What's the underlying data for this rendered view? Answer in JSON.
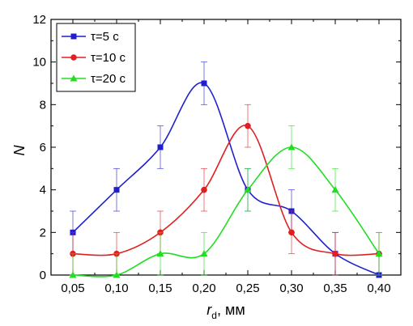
{
  "chart_data": {
    "type": "line",
    "xlabel_main": "r",
    "xlabel_sub": "d",
    "xlabel_unit": ", мм",
    "ylabel": "N",
    "x": [
      0.05,
      0.1,
      0.15,
      0.2,
      0.25,
      0.3,
      0.35,
      0.4
    ],
    "x_tick_labels": [
      "0,05",
      "0,10",
      "0,15",
      "0,20",
      "0,25",
      "0,30",
      "0,35",
      "0,40"
    ],
    "y_ticks": [
      0,
      2,
      4,
      6,
      8,
      10,
      12
    ],
    "xlim": [
      0.025,
      0.425
    ],
    "ylim": [
      0,
      12
    ],
    "grid": false,
    "legend_position": "top-left",
    "series": [
      {
        "name": "τ=5 с",
        "color": "#1f1fd0",
        "marker": "square",
        "values": [
          2,
          4,
          6,
          9,
          4,
          3,
          1,
          0
        ],
        "error": [
          1,
          1,
          1,
          1,
          1,
          1,
          1,
          1
        ]
      },
      {
        "name": "τ=10 с",
        "color": "#e02020",
        "marker": "circle",
        "values": [
          1,
          1,
          2,
          4,
          7,
          2,
          1,
          1
        ],
        "error": [
          1,
          1,
          1,
          1,
          1,
          1,
          1,
          1
        ]
      },
      {
        "name": "τ=20 с",
        "color": "#22dd22",
        "marker": "triangle",
        "values": [
          0,
          0,
          1,
          1,
          4,
          6,
          4,
          1
        ],
        "error": [
          1,
          1,
          1,
          1,
          1,
          1,
          1,
          1
        ]
      }
    ]
  }
}
